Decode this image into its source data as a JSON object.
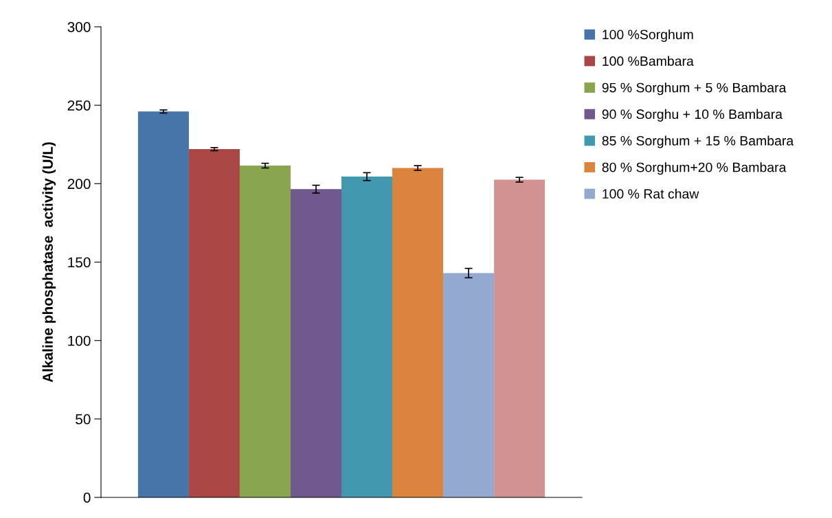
{
  "chart_data": {
    "type": "bar",
    "ylabel": "Alkaline phosphatase  activity (U/L)",
    "categories": [
      null
    ],
    "series": [
      {
        "name": "100 %Sorghum",
        "color": "#4674ab",
        "values": [
          246
        ],
        "errors": [
          1
        ]
      },
      {
        "name": "100 %Bambara",
        "color": "#aa4644",
        "values": [
          222
        ],
        "errors": [
          1
        ]
      },
      {
        "name": "95 % Sorghum + 5 % Bambara",
        "color": "#89a54e",
        "values": [
          211.5
        ],
        "errors": [
          1.5
        ]
      },
      {
        "name": "90 % Sorghu + 10 % Bambara",
        "color": "#71588f",
        "values": [
          196.5
        ],
        "errors": [
          2.5
        ]
      },
      {
        "name": "85 % Sorghum + 15 % Bambara",
        "color": "#4198af",
        "values": [
          204.5
        ],
        "errors": [
          2.5
        ]
      },
      {
        "name": "80 % Sorghum+20 % Bambara",
        "color": "#db843d",
        "values": [
          210
        ],
        "errors": [
          1.5
        ]
      },
      {
        "name": "100 % Rat chaw",
        "color": "#93a9cf",
        "values": [
          143
        ],
        "errors": [
          3
        ]
      },
      {
        "color": "#d19392",
        "values": [
          202.5
        ],
        "errors": [
          1.5
        ]
      }
    ],
    "ylim": [
      0,
      300
    ],
    "yticks": [
      0,
      50,
      100,
      150,
      200,
      250,
      300
    ],
    "grid": false,
    "legend": "right"
  }
}
